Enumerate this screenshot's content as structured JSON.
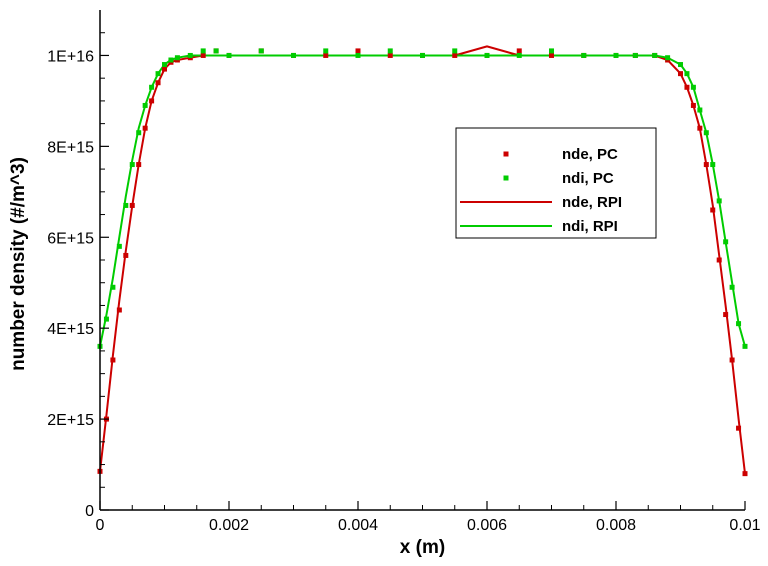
{
  "chart_data": {
    "type": "line",
    "xlabel": "x (m)",
    "ylabel": "number density (#/m^3)",
    "xlim": [
      0,
      0.01
    ],
    "ylim": [
      0,
      1.1e+16
    ],
    "x_ticks": [
      0,
      0.002,
      0.004,
      0.006,
      0.008,
      0.01
    ],
    "x_tick_labels": [
      "0",
      "0.002",
      "0.004",
      "0.006",
      "0.008",
      "0.01"
    ],
    "y_ticks": [
      0,
      2000000000000000.0,
      4000000000000000.0,
      6000000000000000.0,
      8000000000000000.0,
      1e+16
    ],
    "y_tick_labels": [
      "0",
      "2E+15",
      "4E+15",
      "6E+15",
      "8E+15",
      "1E+16"
    ],
    "grid": false,
    "legend_position": "right",
    "series": [
      {
        "name": "nde, PC",
        "style": "markers",
        "color": "#cc0000",
        "x": [
          0,
          0.0001,
          0.0002,
          0.0003,
          0.0004,
          0.0005,
          0.0006,
          0.0007,
          0.0008,
          0.0009,
          0.001,
          0.0011,
          0.0012,
          0.0014,
          0.0016,
          0.0018,
          0.002,
          0.0025,
          0.003,
          0.0035,
          0.004,
          0.0045,
          0.005,
          0.0055,
          0.006,
          0.0065,
          0.007,
          0.0075,
          0.008,
          0.0083,
          0.0086,
          0.0088,
          0.009,
          0.0091,
          0.0092,
          0.0093,
          0.0094,
          0.0095,
          0.0096,
          0.0097,
          0.0098,
          0.0099,
          0.01
        ],
        "y": [
          850000000000000.0,
          2000000000000000.0,
          3300000000000000.0,
          4400000000000000.0,
          5600000000000000.0,
          6700000000000000.0,
          7600000000000000.0,
          8400000000000000.0,
          9000000000000000.0,
          9400000000000000.0,
          9700000000000000.0,
          9850000000000000.0,
          9900000000000000.0,
          9950000000000000.0,
          1e+16,
          1.01e+16,
          1e+16,
          1.01e+16,
          1e+16,
          1e+16,
          1.01e+16,
          1e+16,
          1e+16,
          1e+16,
          1e+16,
          1.01e+16,
          1e+16,
          1e+16,
          1e+16,
          1e+16,
          1e+16,
          9900000000000000.0,
          9600000000000000.0,
          9300000000000000.0,
          8900000000000000.0,
          8400000000000000.0,
          7600000000000000.0,
          6600000000000000.0,
          5500000000000000.0,
          4300000000000000.0,
          3300000000000000.0,
          1800000000000000.0,
          800000000000000.0
        ]
      },
      {
        "name": "ndi, PC",
        "style": "markers",
        "color": "#00cc00",
        "x": [
          0,
          0.0001,
          0.0002,
          0.0003,
          0.0004,
          0.0005,
          0.0006,
          0.0007,
          0.0008,
          0.0009,
          0.001,
          0.0011,
          0.0012,
          0.0014,
          0.0016,
          0.0018,
          0.002,
          0.0025,
          0.003,
          0.0035,
          0.004,
          0.0045,
          0.005,
          0.0055,
          0.006,
          0.0065,
          0.007,
          0.0075,
          0.008,
          0.0083,
          0.0086,
          0.0088,
          0.009,
          0.0091,
          0.0092,
          0.0093,
          0.0094,
          0.0095,
          0.0096,
          0.0097,
          0.0098,
          0.0099,
          0.01
        ],
        "y": [
          3600000000000000.0,
          4200000000000000.0,
          4900000000000000.0,
          5800000000000000.0,
          6700000000000000.0,
          7600000000000000.0,
          8300000000000000.0,
          8900000000000000.0,
          9300000000000000.0,
          9600000000000000.0,
          9800000000000000.0,
          9900000000000000.0,
          9950000000000000.0,
          1e+16,
          1.01e+16,
          1.01e+16,
          1e+16,
          1.01e+16,
          1e+16,
          1.01e+16,
          1e+16,
          1.01e+16,
          1e+16,
          1.01e+16,
          1e+16,
          1e+16,
          1.01e+16,
          1e+16,
          1e+16,
          1e+16,
          1e+16,
          9950000000000000.0,
          9800000000000000.0,
          9600000000000000.0,
          9300000000000000.0,
          8800000000000000.0,
          8300000000000000.0,
          7600000000000000.0,
          6800000000000000.0,
          5900000000000000.0,
          4900000000000000.0,
          4100000000000000.0,
          3600000000000000.0
        ]
      },
      {
        "name": "nde, RPI",
        "style": "line",
        "color": "#cc0000",
        "x": [
          0,
          0.0001,
          0.0002,
          0.0003,
          0.0004,
          0.0005,
          0.0006,
          0.0007,
          0.0008,
          0.0009,
          0.001,
          0.0011,
          0.0012,
          0.0014,
          0.0016,
          0.0018,
          0.002,
          0.0025,
          0.003,
          0.0035,
          0.004,
          0.0045,
          0.005,
          0.0055,
          0.006,
          0.0065,
          0.007,
          0.0075,
          0.008,
          0.0083,
          0.0086,
          0.0088,
          0.009,
          0.0091,
          0.0092,
          0.0093,
          0.0094,
          0.0095,
          0.0096,
          0.0097,
          0.0098,
          0.0099,
          0.01
        ],
        "y": [
          850000000000000.0,
          2100000000000000.0,
          3400000000000000.0,
          4600000000000000.0,
          5700000000000000.0,
          6700000000000000.0,
          7600000000000000.0,
          8400000000000000.0,
          9000000000000000.0,
          9400000000000000.0,
          9700000000000000.0,
          9850000000000000.0,
          9900000000000000.0,
          9950000000000000.0,
          1e+16,
          1e+16,
          1e+16,
          1e+16,
          1e+16,
          1e+16,
          1e+16,
          1e+16,
          1e+16,
          1e+16,
          1.02e+16,
          1e+16,
          1e+16,
          1e+16,
          1e+16,
          1e+16,
          1e+16,
          9900000000000000.0,
          9600000000000000.0,
          9300000000000000.0,
          8900000000000000.0,
          8400000000000000.0,
          7600000000000000.0,
          6700000000000000.0,
          5600000000000000.0,
          4500000000000000.0,
          3300000000000000.0,
          2000000000000000.0,
          800000000000000.0
        ]
      },
      {
        "name": "ndi, RPI",
        "style": "line",
        "color": "#00cc00",
        "x": [
          0,
          0.0001,
          0.0002,
          0.0003,
          0.0004,
          0.0005,
          0.0006,
          0.0007,
          0.0008,
          0.0009,
          0.001,
          0.0011,
          0.0012,
          0.0014,
          0.0016,
          0.0018,
          0.002,
          0.0025,
          0.003,
          0.0035,
          0.004,
          0.0045,
          0.005,
          0.0055,
          0.006,
          0.0065,
          0.007,
          0.0075,
          0.008,
          0.0083,
          0.0086,
          0.0088,
          0.009,
          0.0091,
          0.0092,
          0.0093,
          0.0094,
          0.0095,
          0.0096,
          0.0097,
          0.0098,
          0.0099,
          0.01
        ],
        "y": [
          3600000000000000.0,
          4300000000000000.0,
          5100000000000000.0,
          6000000000000000.0,
          6900000000000000.0,
          7700000000000000.0,
          8400000000000000.0,
          8900000000000000.0,
          9300000000000000.0,
          9600000000000000.0,
          9800000000000000.0,
          9900000000000000.0,
          9950000000000000.0,
          1e+16,
          1e+16,
          1e+16,
          1e+16,
          1e+16,
          1e+16,
          1e+16,
          1e+16,
          1e+16,
          1e+16,
          1e+16,
          1e+16,
          1e+16,
          1e+16,
          1e+16,
          1e+16,
          1e+16,
          1e+16,
          9950000000000000.0,
          9800000000000000.0,
          9600000000000000.0,
          9300000000000000.0,
          8800000000000000.0,
          8300000000000000.0,
          7600000000000000.0,
          6800000000000000.0,
          5900000000000000.0,
          5000000000000000.0,
          4100000000000000.0,
          3600000000000000.0
        ]
      }
    ]
  }
}
